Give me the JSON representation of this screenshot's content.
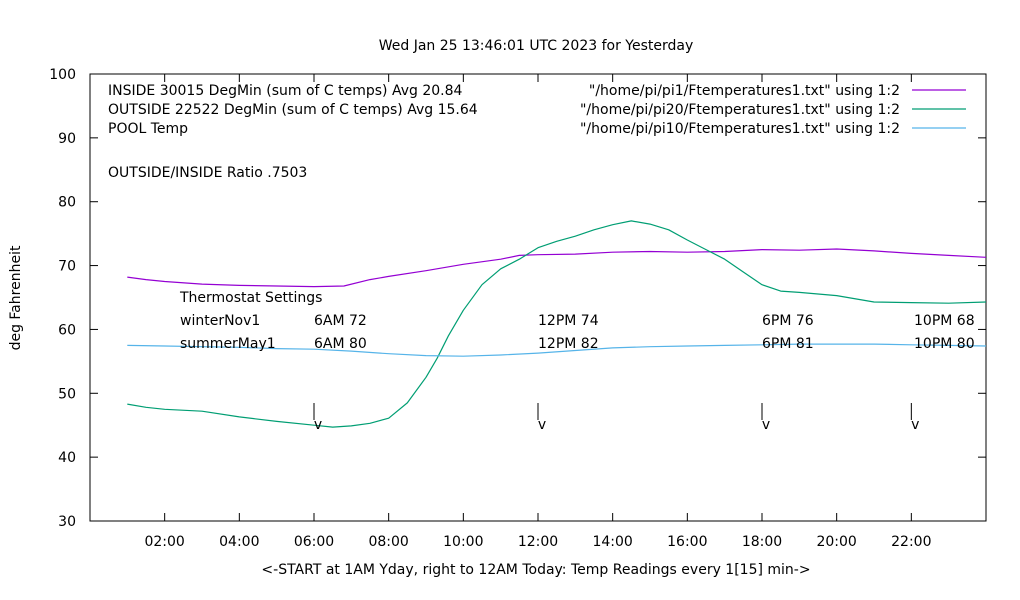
{
  "chart_data": {
    "type": "line",
    "title": "Wed Jan 25 13:46:01 UTC 2023 for Yesterday",
    "xlabel": "<-START at 1AM Yday, right to 12AM Today:  Temp Readings every 1[15] min->",
    "ylabel": "deg Fahrenheit",
    "xlim": [
      0,
      24
    ],
    "ylim": [
      30,
      100
    ],
    "grid": false,
    "legend_position": "top-right",
    "x_ticks": [
      {
        "x": 2,
        "label": "02:00"
      },
      {
        "x": 4,
        "label": "04:00"
      },
      {
        "x": 6,
        "label": "06:00"
      },
      {
        "x": 8,
        "label": "08:00"
      },
      {
        "x": 10,
        "label": "10:00"
      },
      {
        "x": 12,
        "label": "12:00"
      },
      {
        "x": 14,
        "label": "14:00"
      },
      {
        "x": 16,
        "label": "16:00"
      },
      {
        "x": 18,
        "label": "18:00"
      },
      {
        "x": 20,
        "label": "20:00"
      },
      {
        "x": 22,
        "label": "22:00"
      }
    ],
    "y_ticks": [
      30,
      40,
      50,
      60,
      70,
      80,
      90,
      100
    ],
    "series": [
      {
        "name": "\"/home/pi/pi1/Ftemperatures1.txt\" using 1:2",
        "color": "#9400d3",
        "x": [
          1.0,
          1.5,
          2.0,
          3.0,
          4.0,
          5.0,
          6.0,
          6.8,
          7.5,
          8.0,
          9.0,
          10.0,
          11.0,
          11.5,
          12.0,
          13.0,
          14.0,
          15.0,
          16.0,
          17.0,
          18.0,
          19.0,
          20.0,
          21.0,
          22.0,
          23.0,
          24.0
        ],
        "y": [
          68.2,
          67.8,
          67.5,
          67.1,
          66.9,
          66.8,
          66.7,
          66.8,
          67.8,
          68.3,
          69.2,
          70.2,
          71.0,
          71.6,
          71.7,
          71.8,
          72.1,
          72.2,
          72.1,
          72.2,
          72.5,
          72.4,
          72.6,
          72.3,
          71.9,
          71.6,
          71.3
        ]
      },
      {
        "name": "\"/home/pi/pi20/Ftemperatures1.txt\" using 1:2",
        "color": "#009e73",
        "x": [
          1.0,
          1.5,
          2.0,
          3.0,
          4.0,
          5.0,
          6.0,
          6.5,
          7.0,
          7.5,
          8.0,
          8.5,
          9.0,
          9.3,
          9.6,
          10.0,
          10.5,
          11.0,
          11.5,
          12.0,
          12.5,
          13.0,
          13.5,
          14.0,
          14.5,
          15.0,
          15.5,
          16.0,
          16.5,
          17.0,
          17.5,
          18.0,
          18.5,
          19.0,
          20.0,
          21.0,
          22.0,
          23.0,
          24.0
        ],
        "y": [
          48.3,
          47.8,
          47.5,
          47.2,
          46.3,
          45.6,
          45.0,
          44.7,
          44.9,
          45.3,
          46.1,
          48.5,
          52.5,
          55.5,
          59.0,
          63.0,
          67.0,
          69.5,
          71.0,
          72.8,
          73.8,
          74.6,
          75.6,
          76.4,
          77.0,
          76.5,
          75.6,
          74.0,
          72.5,
          71.0,
          69.0,
          67.0,
          66.0,
          65.8,
          65.3,
          64.3,
          64.2,
          64.1,
          64.3
        ]
      },
      {
        "name": "\"/home/pi/pi10/Ftemperatures1.txt\" using 1:2",
        "color": "#56b4e9",
        "x": [
          1.0,
          2.0,
          3.0,
          4.0,
          5.0,
          6.0,
          7.0,
          8.0,
          9.0,
          10.0,
          11.0,
          12.0,
          13.0,
          14.0,
          15.0,
          16.0,
          17.0,
          18.0,
          19.0,
          20.0,
          21.0,
          22.0,
          23.0,
          24.0
        ],
        "y": [
          57.5,
          57.4,
          57.3,
          57.2,
          57.0,
          56.9,
          56.6,
          56.2,
          55.9,
          55.8,
          56.0,
          56.3,
          56.7,
          57.1,
          57.3,
          57.4,
          57.5,
          57.6,
          57.7,
          57.7,
          57.7,
          57.6,
          57.5,
          57.4
        ]
      }
    ],
    "legend_labels": [
      "INSIDE 30015 DegMin (sum of C temps) Avg 20.84",
      "OUTSIDE 22522 DegMin (sum of C temps) Avg 15.64",
      "POOL Temp"
    ],
    "annotations": {
      "ratio": "OUTSIDE/INSIDE Ratio .7503",
      "thermostat_title": "Thermostat Settings",
      "rows": [
        {
          "label": "winterNov1",
          "values": [
            "6AM 72",
            "12PM 74",
            "6PM 76",
            "10PM 68"
          ]
        },
        {
          "label": "summerMay1",
          "values": [
            "6AM 80",
            "12PM 82",
            "6PM 81",
            "10PM 80"
          ]
        }
      ],
      "arrow_times": [
        6,
        12,
        18,
        22
      ],
      "arrow_label": "v"
    }
  }
}
